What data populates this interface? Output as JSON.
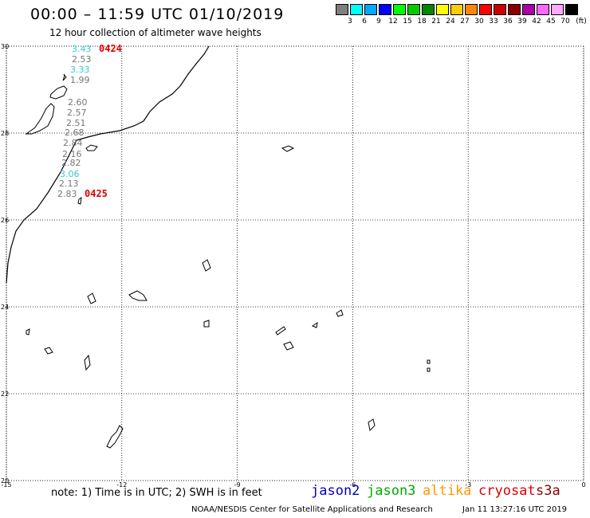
{
  "header": {
    "title": "00:00 – 11:59 UTC 01/10/2019",
    "subtitle": "12 hour collection of altimeter wave heights"
  },
  "colorbar": {
    "unit": "(ft)",
    "bins": [
      {
        "label": "3",
        "color": "#7f7f7f"
      },
      {
        "label": "6",
        "color": "#00ffff"
      },
      {
        "label": "9",
        "color": "#00aaff"
      },
      {
        "label": "12",
        "color": "#0000ff"
      },
      {
        "label": "15",
        "color": "#00ff00"
      },
      {
        "label": "18",
        "color": "#00cc00"
      },
      {
        "label": "21",
        "color": "#008800"
      },
      {
        "label": "24",
        "color": "#ffff00"
      },
      {
        "label": "27",
        "color": "#ffcc00"
      },
      {
        "label": "30",
        "color": "#ff8800"
      },
      {
        "label": "33",
        "color": "#ff0000"
      },
      {
        "label": "36",
        "color": "#cc0000"
      },
      {
        "label": "39",
        "color": "#880000"
      },
      {
        "label": "42",
        "color": "#aa00aa"
      },
      {
        "label": "45",
        "color": "#ff66ff"
      },
      {
        "label": "70",
        "color": "#ffaaff"
      },
      {
        "label": "",
        "color": "#000000"
      }
    ]
  },
  "map": {
    "lat_labels": [
      "30",
      "28",
      "26",
      "24",
      "22",
      "20"
    ],
    "lon_labels": [
      "-15",
      "-12",
      "-9",
      "-6",
      "-3",
      "0"
    ],
    "lat_range": [
      20,
      30
    ],
    "lon_range": [
      -15,
      0
    ],
    "track_times": [
      {
        "label": "0424",
        "color": "#dd0000"
      },
      {
        "label": "0425",
        "color": "#dd0000"
      }
    ],
    "observations": [
      {
        "value": "3.43",
        "color": "#33cccc"
      },
      {
        "value": "2.53",
        "color": "#777777"
      },
      {
        "value": "3.33",
        "color": "#33cccc"
      },
      {
        "value": "1.99",
        "color": "#777777"
      },
      {
        "value": "2.60",
        "color": "#777777"
      },
      {
        "value": "2.57",
        "color": "#777777"
      },
      {
        "value": "2.51",
        "color": "#777777"
      },
      {
        "value": "2.68",
        "color": "#777777"
      },
      {
        "value": "2.84",
        "color": "#777777"
      },
      {
        "value": "2.16",
        "color": "#777777"
      },
      {
        "value": "2.82",
        "color": "#777777"
      },
      {
        "value": "3.06",
        "color": "#33cccc"
      },
      {
        "value": "2.13",
        "color": "#777777"
      },
      {
        "value": "2.83",
        "color": "#777777"
      }
    ]
  },
  "footer": {
    "note": "note: 1) Time is in UTC; 2) SWH is in feet",
    "satellites": [
      {
        "name": "jason2",
        "color": "#0000cc"
      },
      {
        "name": "jason3",
        "color": "#00aa00"
      },
      {
        "name": "altika",
        "color": "#ff9900"
      },
      {
        "name": "cryosat",
        "color": "#dd0000"
      },
      {
        "name": "s3a",
        "color": "#880000"
      }
    ],
    "credit": "NOAA/NESDIS Center for Satellite Applications and Research",
    "timestamp": "Jan 11 13:27:16 UTC 2019"
  }
}
